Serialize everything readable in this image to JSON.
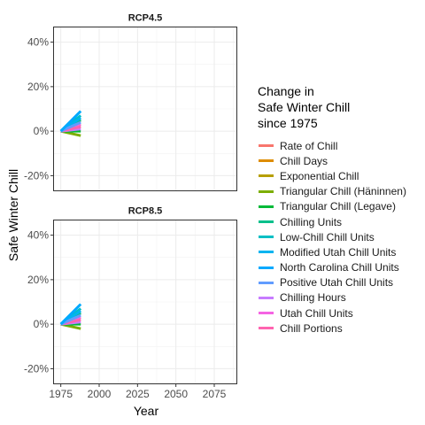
{
  "chart_data": {
    "type": "line",
    "ylabel": "Safe Winter Chill",
    "xlabel": "Year",
    "xlim": [
      1970,
      2090
    ],
    "ylim": [
      -0.27,
      0.47
    ],
    "x_ticks": [
      1975,
      2000,
      2025,
      2050,
      2075
    ],
    "x_tick_labels": [
      "1975",
      "2000",
      "2025",
      "2050",
      "2075"
    ],
    "y_ticks": [
      -0.2,
      0.0,
      0.2,
      0.4
    ],
    "y_tick_labels": [
      "-20%",
      "0%",
      "20%",
      "40%"
    ],
    "grid": true,
    "legend_position": "right",
    "legend_title": "Change in\nSafe Winter Chill\nsince 1975",
    "panels": [
      {
        "label": "RCP4.5"
      },
      {
        "label": "RCP8.5"
      }
    ],
    "series": [
      {
        "name": "Rate of Chill",
        "color": "#F8766D",
        "x": [
          1975,
          1988
        ],
        "y": [
          0.0,
          0.02
        ]
      },
      {
        "name": "Chill Days",
        "color": "#DE8C00",
        "x": [
          1975,
          1988
        ],
        "y": [
          0.0,
          0.05
        ]
      },
      {
        "name": "Exponential Chill",
        "color": "#B79F00",
        "x": [
          1975,
          1988
        ],
        "y": [
          0.0,
          0.03
        ]
      },
      {
        "name": "Triangular Chill (Häninnen)",
        "color": "#7CAE00",
        "x": [
          1975,
          1988
        ],
        "y": [
          0.0,
          -0.02
        ]
      },
      {
        "name": "Triangular Chill (Legave)",
        "color": "#00BA38",
        "x": [
          1975,
          1988
        ],
        "y": [
          0.0,
          0.0
        ]
      },
      {
        "name": "Chilling Units",
        "color": "#00C08B",
        "x": [
          1975,
          1988
        ],
        "y": [
          0.0,
          0.05
        ]
      },
      {
        "name": "Low-Chill Chill Units",
        "color": "#00BFC4",
        "x": [
          1975,
          1988
        ],
        "y": [
          0.0,
          0.07
        ]
      },
      {
        "name": "Modified Utah Chill Units",
        "color": "#00B4F0",
        "x": [
          1975,
          1988
        ],
        "y": [
          0.0,
          0.06
        ]
      },
      {
        "name": "North Carolina Chill Units",
        "color": "#00A9FF",
        "x": [
          1975,
          1988
        ],
        "y": [
          0.0,
          0.09
        ]
      },
      {
        "name": "Positive Utah Chill Units",
        "color": "#619CFF",
        "x": [
          1975,
          1988
        ],
        "y": [
          0.0,
          0.04
        ]
      },
      {
        "name": "Chilling Hours",
        "color": "#C77CFF",
        "x": [
          1975,
          1988
        ],
        "y": [
          0.0,
          0.01
        ]
      },
      {
        "name": "Utah Chill Units",
        "color": "#F564E3",
        "x": [
          1975,
          1988
        ],
        "y": [
          0.0,
          0.03
        ]
      },
      {
        "name": "Chill Portions",
        "color": "#FF64B0",
        "x": [
          1975,
          1988
        ],
        "y": [
          0.0,
          0.02
        ]
      }
    ],
    "draw_order": [
      0,
      1,
      2,
      3,
      4,
      5,
      6,
      7,
      10,
      11,
      12,
      9,
      8
    ]
  }
}
